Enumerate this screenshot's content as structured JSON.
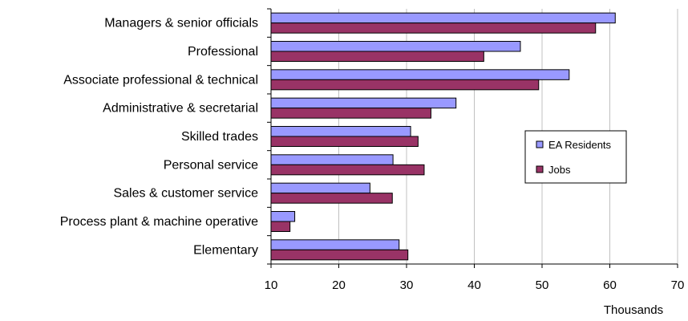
{
  "chart_data": {
    "type": "bar",
    "orientation": "horizontal",
    "categories": [
      "Managers & senior officials",
      "Professional",
      "Associate professional & technical",
      "Administrative & secretarial",
      "Skilled trades",
      "Personal service",
      "Sales & customer service",
      "Process plant & machine operative",
      "Elementary"
    ],
    "series": [
      {
        "name": "EA Residents",
        "color": "#9999ff",
        "values": [
          60.8,
          46.8,
          54.0,
          37.3,
          30.6,
          28.0,
          24.6,
          13.5,
          28.9
        ]
      },
      {
        "name": "Jobs",
        "color": "#993366",
        "values": [
          57.9,
          41.4,
          49.5,
          33.6,
          31.7,
          32.6,
          27.9,
          12.8,
          30.2
        ]
      }
    ],
    "xlabel": "Thousands",
    "xlim": [
      10,
      70
    ],
    "xticks": [
      "10",
      "20",
      "30",
      "40",
      "50",
      "60",
      "70"
    ],
    "grid": "vertical",
    "legend_position": "right"
  }
}
